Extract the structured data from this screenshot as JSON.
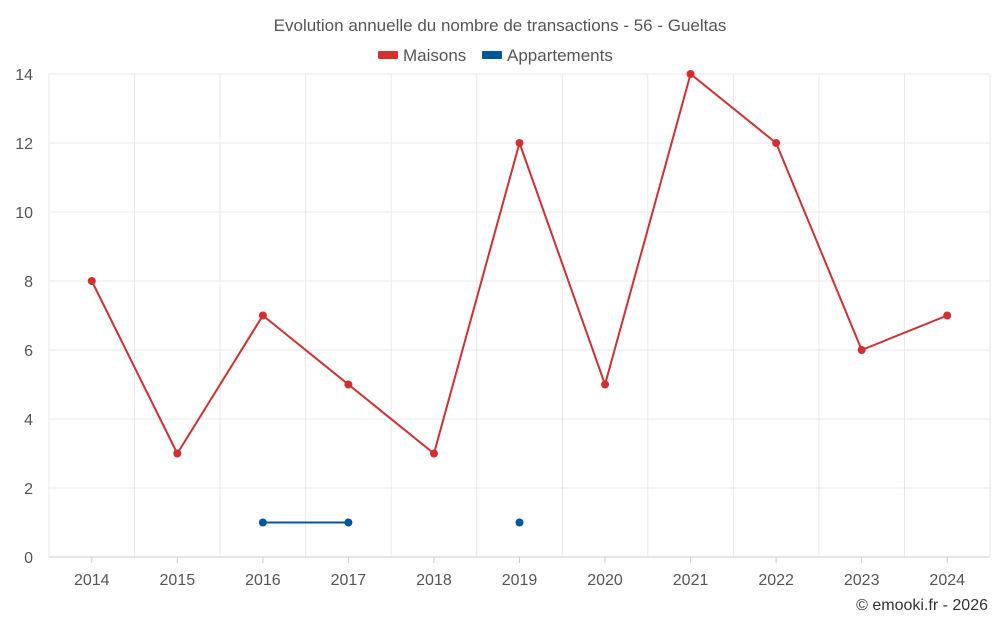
{
  "chart_data": {
    "type": "line",
    "title": "Evolution annuelle du nombre de transactions - 56 - Gueltas",
    "categories": [
      "2014",
      "2015",
      "2016",
      "2017",
      "2018",
      "2019",
      "2020",
      "2021",
      "2022",
      "2023",
      "2024"
    ],
    "series": [
      {
        "name": "Maisons",
        "color": "#d32f2f",
        "values": [
          8,
          3,
          7,
          5,
          3,
          12,
          5,
          14,
          12,
          6,
          7
        ]
      },
      {
        "name": "Appartements",
        "color": "#01579b",
        "values": [
          null,
          null,
          1,
          1,
          null,
          1,
          null,
          null,
          null,
          null,
          null
        ]
      }
    ],
    "ylim": [
      0,
      14
    ],
    "yticks": [
      0,
      2,
      4,
      6,
      8,
      10,
      12,
      14
    ],
    "grid": true,
    "legend": "top-center",
    "xlabel": "",
    "ylabel": ""
  },
  "credit": "© emooki.fr - 2026"
}
